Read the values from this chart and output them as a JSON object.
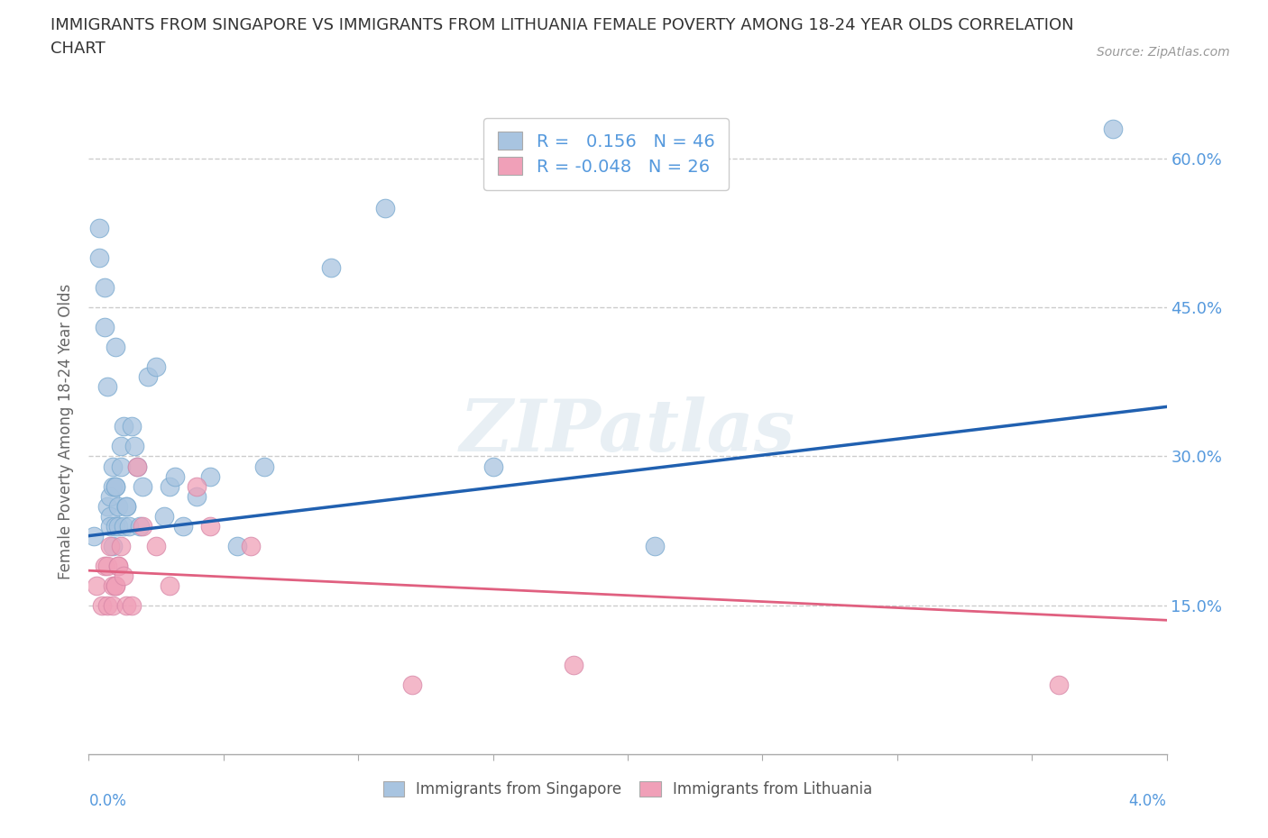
{
  "title": "IMMIGRANTS FROM SINGAPORE VS IMMIGRANTS FROM LITHUANIA FEMALE POVERTY AMONG 18-24 YEAR OLDS CORRELATION\nCHART",
  "source": "Source: ZipAtlas.com",
  "ylabel": "Female Poverty Among 18-24 Year Olds",
  "xlim": [
    0.0,
    4.0
  ],
  "ylim": [
    0.0,
    65.0
  ],
  "yticks": [
    15.0,
    30.0,
    45.0,
    60.0
  ],
  "singapore_R": 0.156,
  "singapore_N": 46,
  "lithuania_R": -0.048,
  "lithuania_N": 26,
  "singapore_color": "#a8c4e0",
  "singapore_line_color": "#2060b0",
  "lithuania_color": "#f0a0b8",
  "lithuania_line_color": "#e06080",
  "singapore_x": [
    0.02,
    0.04,
    0.04,
    0.06,
    0.06,
    0.07,
    0.07,
    0.08,
    0.08,
    0.08,
    0.09,
    0.09,
    0.09,
    0.1,
    0.1,
    0.1,
    0.1,
    0.11,
    0.11,
    0.12,
    0.12,
    0.13,
    0.13,
    0.14,
    0.14,
    0.15,
    0.16,
    0.17,
    0.18,
    0.19,
    0.2,
    0.22,
    0.25,
    0.28,
    0.3,
    0.32,
    0.35,
    0.4,
    0.45,
    0.55,
    0.65,
    0.9,
    1.1,
    1.5,
    2.1,
    3.8
  ],
  "singapore_y": [
    22,
    53,
    50,
    47,
    43,
    25,
    37,
    24,
    26,
    23,
    21,
    29,
    27,
    23,
    27,
    27,
    41,
    25,
    23,
    31,
    29,
    33,
    23,
    25,
    25,
    23,
    33,
    31,
    29,
    23,
    27,
    38,
    39,
    24,
    27,
    28,
    23,
    26,
    28,
    21,
    29,
    49,
    55,
    29,
    21,
    63
  ],
  "lithuania_x": [
    0.03,
    0.05,
    0.06,
    0.07,
    0.07,
    0.08,
    0.09,
    0.09,
    0.1,
    0.1,
    0.11,
    0.11,
    0.12,
    0.13,
    0.14,
    0.16,
    0.18,
    0.2,
    0.25,
    0.3,
    0.4,
    0.45,
    0.6,
    1.2,
    1.8,
    3.6
  ],
  "lithuania_y": [
    17,
    15,
    19,
    19,
    15,
    21,
    17,
    15,
    17,
    17,
    19,
    19,
    21,
    18,
    15,
    15,
    29,
    23,
    21,
    17,
    27,
    23,
    21,
    7,
    9,
    7
  ],
  "sg_line_x0": 0.0,
  "sg_line_y0": 22.0,
  "sg_line_x1": 4.0,
  "sg_line_y1": 35.0,
  "lt_line_x0": 0.0,
  "lt_line_y0": 18.5,
  "lt_line_x1": 4.0,
  "lt_line_y1": 13.5,
  "watermark": "ZIPatlas",
  "background_color": "#ffffff",
  "grid_color": "#cccccc"
}
